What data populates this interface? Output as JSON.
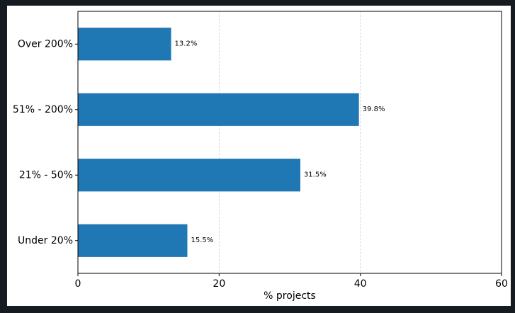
{
  "chart_data": {
    "type": "bar",
    "orientation": "horizontal",
    "categories": [
      "Under 20%",
      "21% - 50%",
      "51% - 200%",
      "Over 200%"
    ],
    "values": [
      15.5,
      31.5,
      39.8,
      13.2
    ],
    "value_labels": [
      "15.5%",
      "31.5%",
      "39.8%",
      "13.2%"
    ],
    "title": "",
    "xlabel": "% projects",
    "ylabel": "",
    "xlim": [
      0,
      60
    ],
    "xticks": [
      0,
      20,
      40,
      60
    ],
    "xtick_labels": [
      "0",
      "20",
      "40",
      "60"
    ],
    "grid": "x-axis dashed",
    "bar_color": "#1f77b4",
    "grid_color": "#d0d0d0"
  }
}
